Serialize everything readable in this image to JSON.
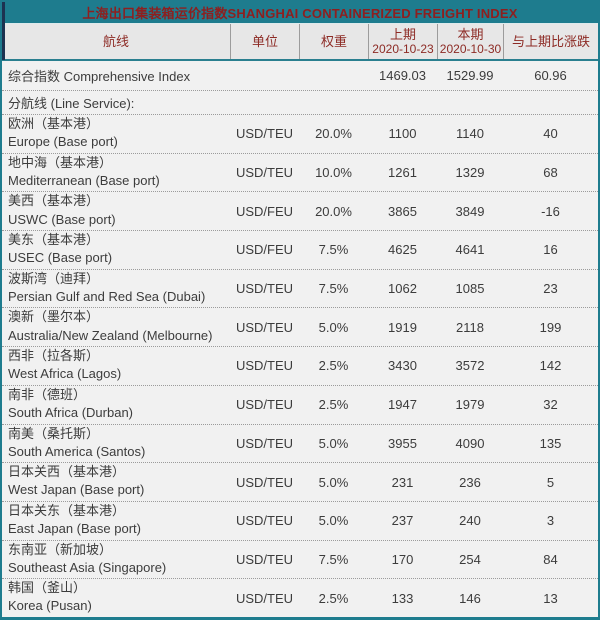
{
  "title": "上海出口集装箱运价指数SHANGHAI CONTAINERIZED FREIGHT INDEX",
  "colors": {
    "teal_accent": "#1E7C8E",
    "navy_accent": "#1D3250",
    "title_text_red": "#8E1F1F",
    "header_text_maroon": "#8D2B25",
    "header_bg": "#E7E7E7",
    "row_bg": "#F1F1F1",
    "body_text": "#3C3C3C"
  },
  "table": {
    "columns": [
      {
        "label": "航线",
        "sub": ""
      },
      {
        "label": "单位",
        "sub": ""
      },
      {
        "label": "权重",
        "sub": ""
      },
      {
        "label": "上期",
        "sub": "2020-10-23"
      },
      {
        "label": "本期",
        "sub": "2020-10-30"
      },
      {
        "label": "与上期比涨跌",
        "sub": ""
      }
    ],
    "summary": {
      "name": "综合指数 Comprehensive Index",
      "unit": "",
      "weight": "",
      "prev": "1469.03",
      "current": "1529.99",
      "change": "60.96"
    },
    "section_label": "分航线 (Line Service):",
    "rows": [
      {
        "name_cn": "欧洲（基本港）",
        "name_en": "Europe (Base port)",
        "unit": "USD/TEU",
        "weight": "20.0%",
        "prev": "1100",
        "current": "1140",
        "change": "40"
      },
      {
        "name_cn": "地中海（基本港）",
        "name_en": "Mediterranean (Base port)",
        "unit": "USD/TEU",
        "weight": "10.0%",
        "prev": "1261",
        "current": "1329",
        "change": "68"
      },
      {
        "name_cn": "美西（基本港）",
        "name_en": "USWC (Base port)",
        "unit": "USD/FEU",
        "weight": "20.0%",
        "prev": "3865",
        "current": "3849",
        "change": "-16"
      },
      {
        "name_cn": "美东（基本港）",
        "name_en": "USEC (Base port)",
        "unit": "USD/FEU",
        "weight": "7.5%",
        "prev": "4625",
        "current": "4641",
        "change": "16"
      },
      {
        "name_cn": "波斯湾（迪拜）",
        "name_en": "Persian Gulf and Red Sea (Dubai)",
        "unit": "USD/TEU",
        "weight": "7.5%",
        "prev": "1062",
        "current": "1085",
        "change": "23"
      },
      {
        "name_cn": "澳新（墨尔本）",
        "name_en": "Australia/New Zealand (Melbourne)",
        "unit": "USD/TEU",
        "weight": "5.0%",
        "prev": "1919",
        "current": "2118",
        "change": "199"
      },
      {
        "name_cn": "西非（拉各斯）",
        "name_en": "West Africa (Lagos)",
        "unit": "USD/TEU",
        "weight": "2.5%",
        "prev": "3430",
        "current": "3572",
        "change": "142"
      },
      {
        "name_cn": "南非（德班）",
        "name_en": "South Africa (Durban)",
        "unit": "USD/TEU",
        "weight": "2.5%",
        "prev": "1947",
        "current": "1979",
        "change": "32"
      },
      {
        "name_cn": "南美（桑托斯）",
        "name_en": "South America (Santos)",
        "unit": "USD/TEU",
        "weight": "5.0%",
        "prev": "3955",
        "current": "4090",
        "change": "135"
      },
      {
        "name_cn": "日本关西（基本港）",
        "name_en": "West Japan (Base port)",
        "unit": "USD/TEU",
        "weight": "5.0%",
        "prev": "231",
        "current": "236",
        "change": "5"
      },
      {
        "name_cn": "日本关东（基本港）",
        "name_en": "East Japan (Base port)",
        "unit": "USD/TEU",
        "weight": "5.0%",
        "prev": "237",
        "current": "240",
        "change": "3"
      },
      {
        "name_cn": "东南亚（新加坡）",
        "name_en": "Southeast Asia (Singapore)",
        "unit": "USD/TEU",
        "weight": "7.5%",
        "prev": "170",
        "current": "254",
        "change": "84"
      },
      {
        "name_cn": "韩国（釜山）",
        "name_en": "Korea (Pusan)",
        "unit": "USD/TEU",
        "weight": "2.5%",
        "prev": "133",
        "current": "146",
        "change": "13"
      }
    ]
  }
}
